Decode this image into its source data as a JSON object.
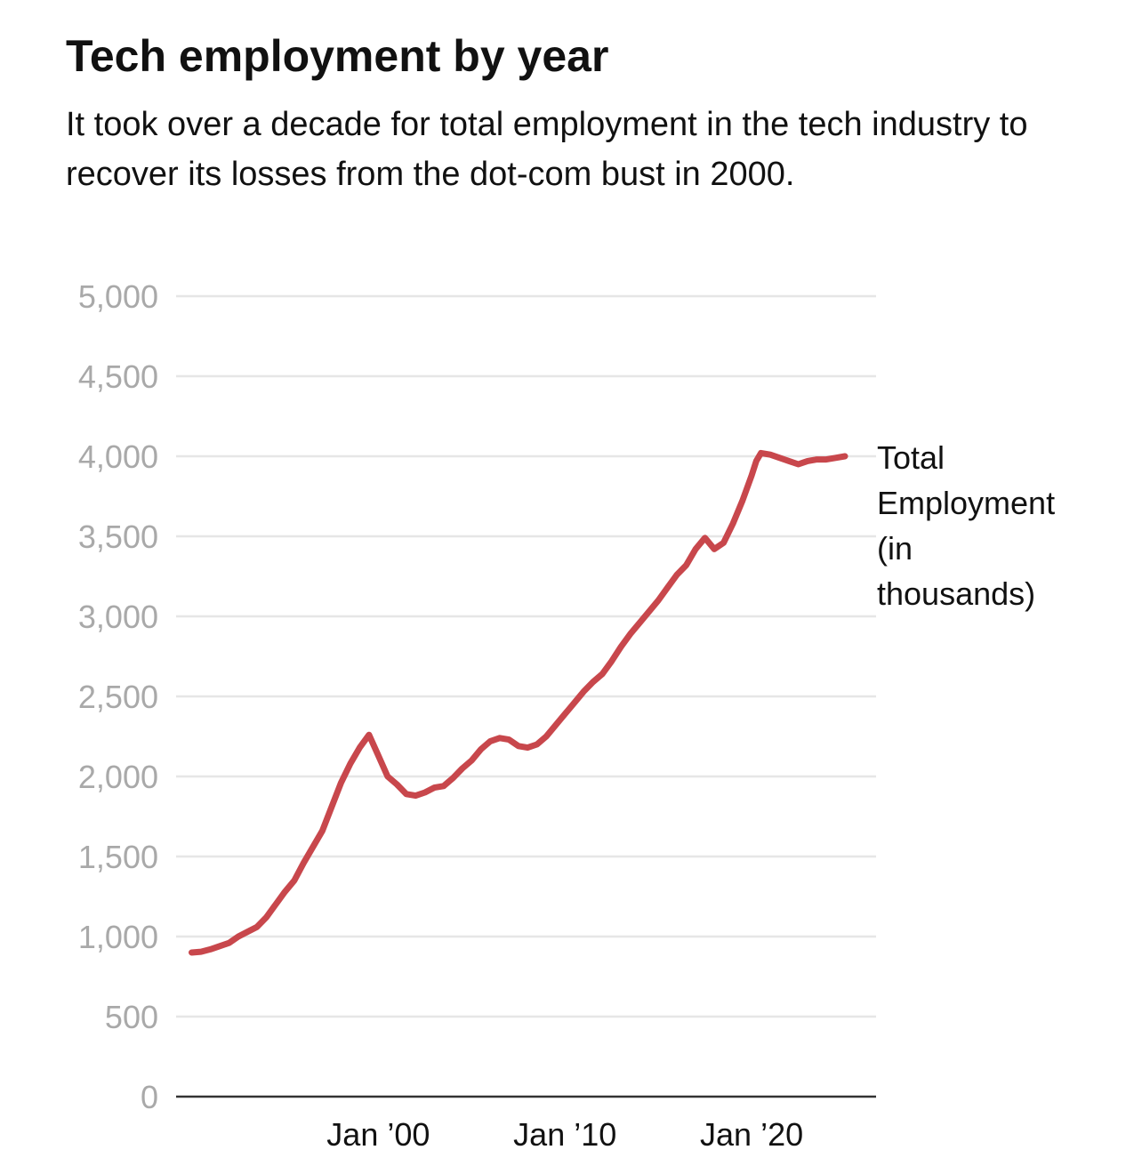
{
  "title": "Tech employment by year",
  "subtitle": "It took over a decade for total employment in the tech industry to recover its losses from the dot-com bust in 2000.",
  "chart_data": {
    "type": "line",
    "title": "Tech employment by year",
    "subtitle": "It took over a decade for total employment in the tech industry to recover its losses from the dot-com bust in 2000.",
    "xlabel": "",
    "ylabel": "",
    "ylim": [
      0,
      5000
    ],
    "xlim": [
      "1989-03",
      "2026-09"
    ],
    "grid": true,
    "y_ticks": [
      0,
      500,
      1000,
      1500,
      2000,
      2500,
      3000,
      3500,
      4000,
      4500,
      5000
    ],
    "y_tick_labels": [
      "0",
      "500",
      "1,000",
      "1,500",
      "2,000",
      "2,500",
      "3,000",
      "3,500",
      "4,000",
      "4,500",
      "5,000"
    ],
    "x_ticks": [
      "2000-01",
      "2010-01",
      "2020-01"
    ],
    "x_tick_labels": [
      "Jan ’00",
      "Jan ’10",
      "Jan ’20"
    ],
    "line_color": "#c8474c",
    "series": [
      {
        "name": "Total Employment (in thousands)",
        "label_lines": [
          "Total",
          "Employment",
          "(in",
          "thousands)"
        ],
        "x": [
          "1990-01",
          "1990-07",
          "1991-01",
          "1991-07",
          "1992-01",
          "1992-07",
          "1993-01",
          "1993-07",
          "1994-01",
          "1994-07",
          "1995-01",
          "1995-07",
          "1996-01",
          "1996-07",
          "1997-01",
          "1997-07",
          "1998-01",
          "1998-07",
          "1999-01",
          "1999-07",
          "2000-01",
          "2000-07",
          "2001-01",
          "2001-07",
          "2002-01",
          "2002-07",
          "2003-01",
          "2003-07",
          "2004-01",
          "2004-07",
          "2005-01",
          "2005-07",
          "2006-01",
          "2006-07",
          "2007-01",
          "2007-07",
          "2008-01",
          "2008-07",
          "2009-01",
          "2009-07",
          "2010-01",
          "2010-07",
          "2011-01",
          "2011-07",
          "2012-01",
          "2012-07",
          "2013-01",
          "2013-07",
          "2014-01",
          "2014-07",
          "2015-01",
          "2015-07",
          "2016-01",
          "2016-07",
          "2017-01",
          "2017-07",
          "2018-01",
          "2018-07",
          "2019-01",
          "2019-07",
          "2020-01",
          "2020-04",
          "2020-07",
          "2021-01",
          "2021-07",
          "2022-01",
          "2022-07",
          "2022-10",
          "2023-01",
          "2023-07",
          "2024-01",
          "2024-07",
          "2025-01"
        ],
        "values": [
          900,
          905,
          920,
          940,
          960,
          1000,
          1030,
          1060,
          1120,
          1200,
          1280,
          1350,
          1460,
          1560,
          1660,
          1810,
          1960,
          2080,
          2180,
          2260,
          2130,
          2000,
          1950,
          1890,
          1880,
          1900,
          1930,
          1940,
          1990,
          2050,
          2100,
          2170,
          2220,
          2240,
          2230,
          2190,
          2180,
          2200,
          2250,
          2320,
          2390,
          2460,
          2530,
          2590,
          2640,
          2720,
          2810,
          2890,
          2960,
          3030,
          3100,
          3180,
          3260,
          3320,
          3420,
          3490,
          3420,
          3460,
          3580,
          3720,
          3880,
          3970,
          4020,
          4010,
          3990,
          3970,
          3950,
          3960,
          3970,
          3980,
          3980,
          3990,
          4000
        ]
      }
    ]
  }
}
